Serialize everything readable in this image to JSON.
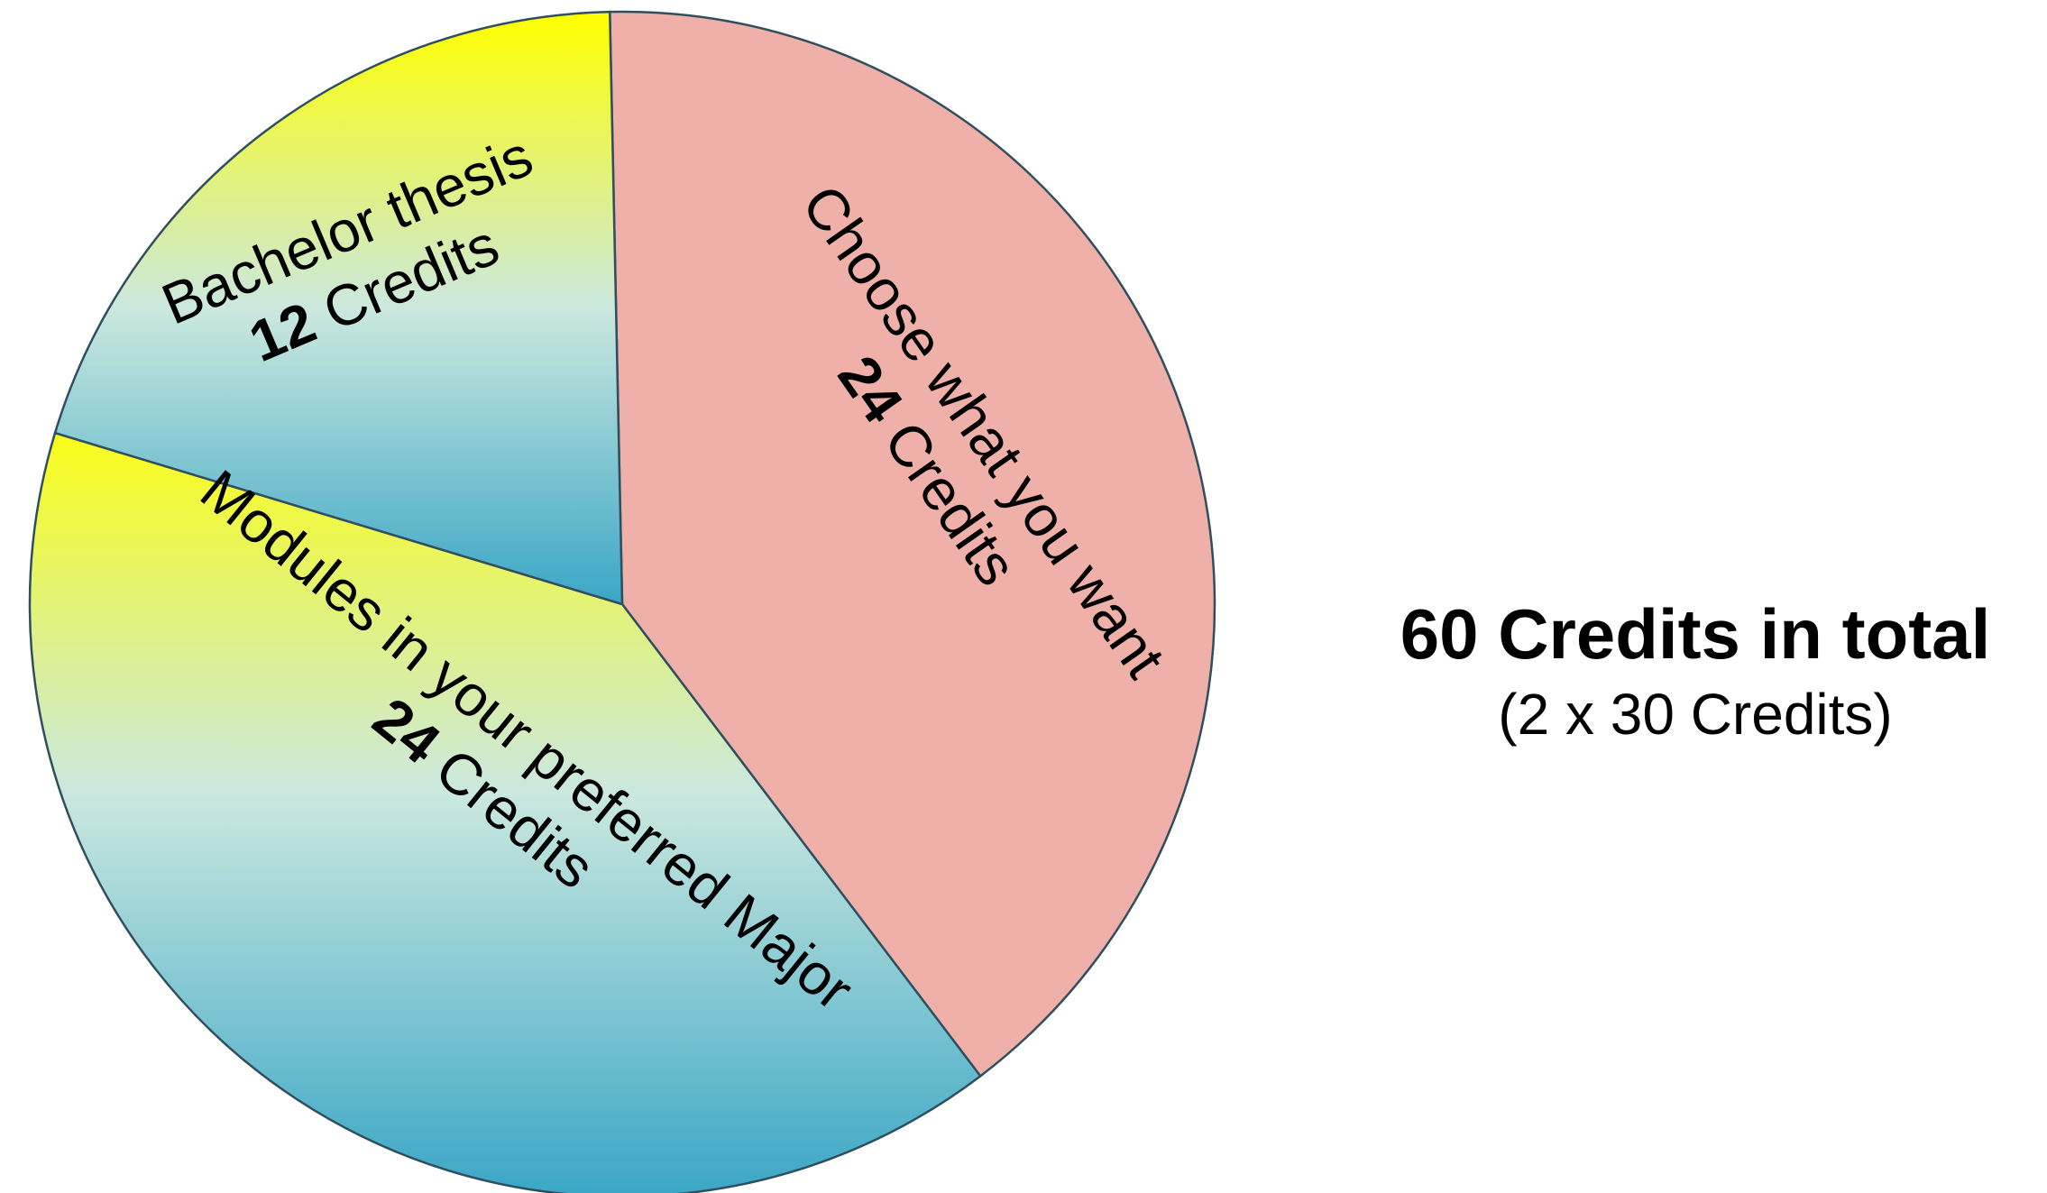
{
  "chart_data": {
    "type": "pie",
    "slices": [
      {
        "label": "Choose what you want",
        "value": 24,
        "value_text": "24",
        "unit_text": "Credits",
        "color": "#eeb0a9"
      },
      {
        "label": "Modules in your preferred Major",
        "value": 24,
        "value_text": "24",
        "unit_text": "Credits",
        "gradient": [
          "#ffff00",
          "#c8e6e0",
          "#3aa6c6"
        ]
      },
      {
        "label": "Bachelor thesis",
        "value": 12,
        "value_text": "12",
        "unit_text": "Credits",
        "gradient": [
          "#ffff00",
          "#c8e6e0",
          "#3aa6c6"
        ]
      }
    ],
    "legend": "none"
  },
  "summary": {
    "total_text": "60 Credits in total",
    "sub_text": "(2 x 30 Credits)"
  }
}
